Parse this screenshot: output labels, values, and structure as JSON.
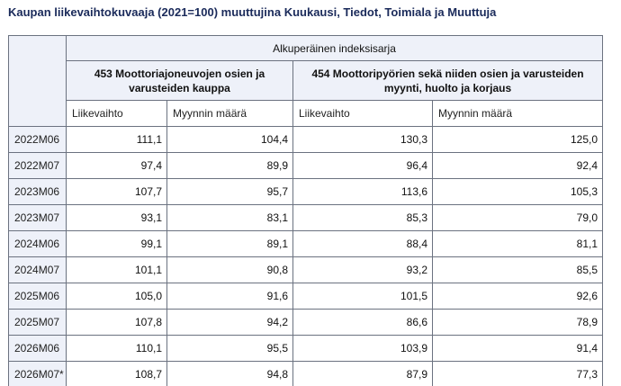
{
  "title": "Kaupan liikevaihtokuvaaja (2021=100) muuttujina Kuukausi, Tiedot, Toimiala ja Muuttuja",
  "table": {
    "series_header": "Alkuperäinen indeksisarja",
    "group_453": "453 Moottoriajoneuvojen osien ja varusteiden kauppa",
    "group_454": "454 Moottoripyörien sekä niiden osien ja varusteiden myynti, huolto ja korjaus",
    "measures": [
      "Liikevaihto",
      "Myynnin määrä",
      "Liikevaihto",
      "Myynnin määrä"
    ],
    "rows": [
      {
        "month": "2022M06",
        "v": [
          "111,1",
          "104,4",
          "130,3",
          "125,0"
        ]
      },
      {
        "month": "2022M07",
        "v": [
          "97,4",
          "89,9",
          "96,4",
          "92,4"
        ]
      },
      {
        "month": "2023M06",
        "v": [
          "107,7",
          "95,7",
          "113,6",
          "105,3"
        ]
      },
      {
        "month": "2023M07",
        "v": [
          "93,1",
          "83,1",
          "85,3",
          "79,0"
        ]
      },
      {
        "month": "2024M06",
        "v": [
          "99,1",
          "89,1",
          "88,4",
          "81,1"
        ]
      },
      {
        "month": "2024M07",
        "v": [
          "101,1",
          "90,8",
          "93,2",
          "85,5"
        ]
      },
      {
        "month": "2025M06",
        "v": [
          "105,0",
          "91,6",
          "101,5",
          "92,6"
        ]
      },
      {
        "month": "2025M07",
        "v": [
          "107,8",
          "94,2",
          "86,6",
          "78,9"
        ]
      },
      {
        "month": "2026M06",
        "v": [
          "110,1",
          "95,5",
          "103,9",
          "91,4"
        ]
      },
      {
        "month": "2026M07*",
        "v": [
          "108,7",
          "94,8",
          "87,9",
          "77,3"
        ]
      }
    ]
  }
}
